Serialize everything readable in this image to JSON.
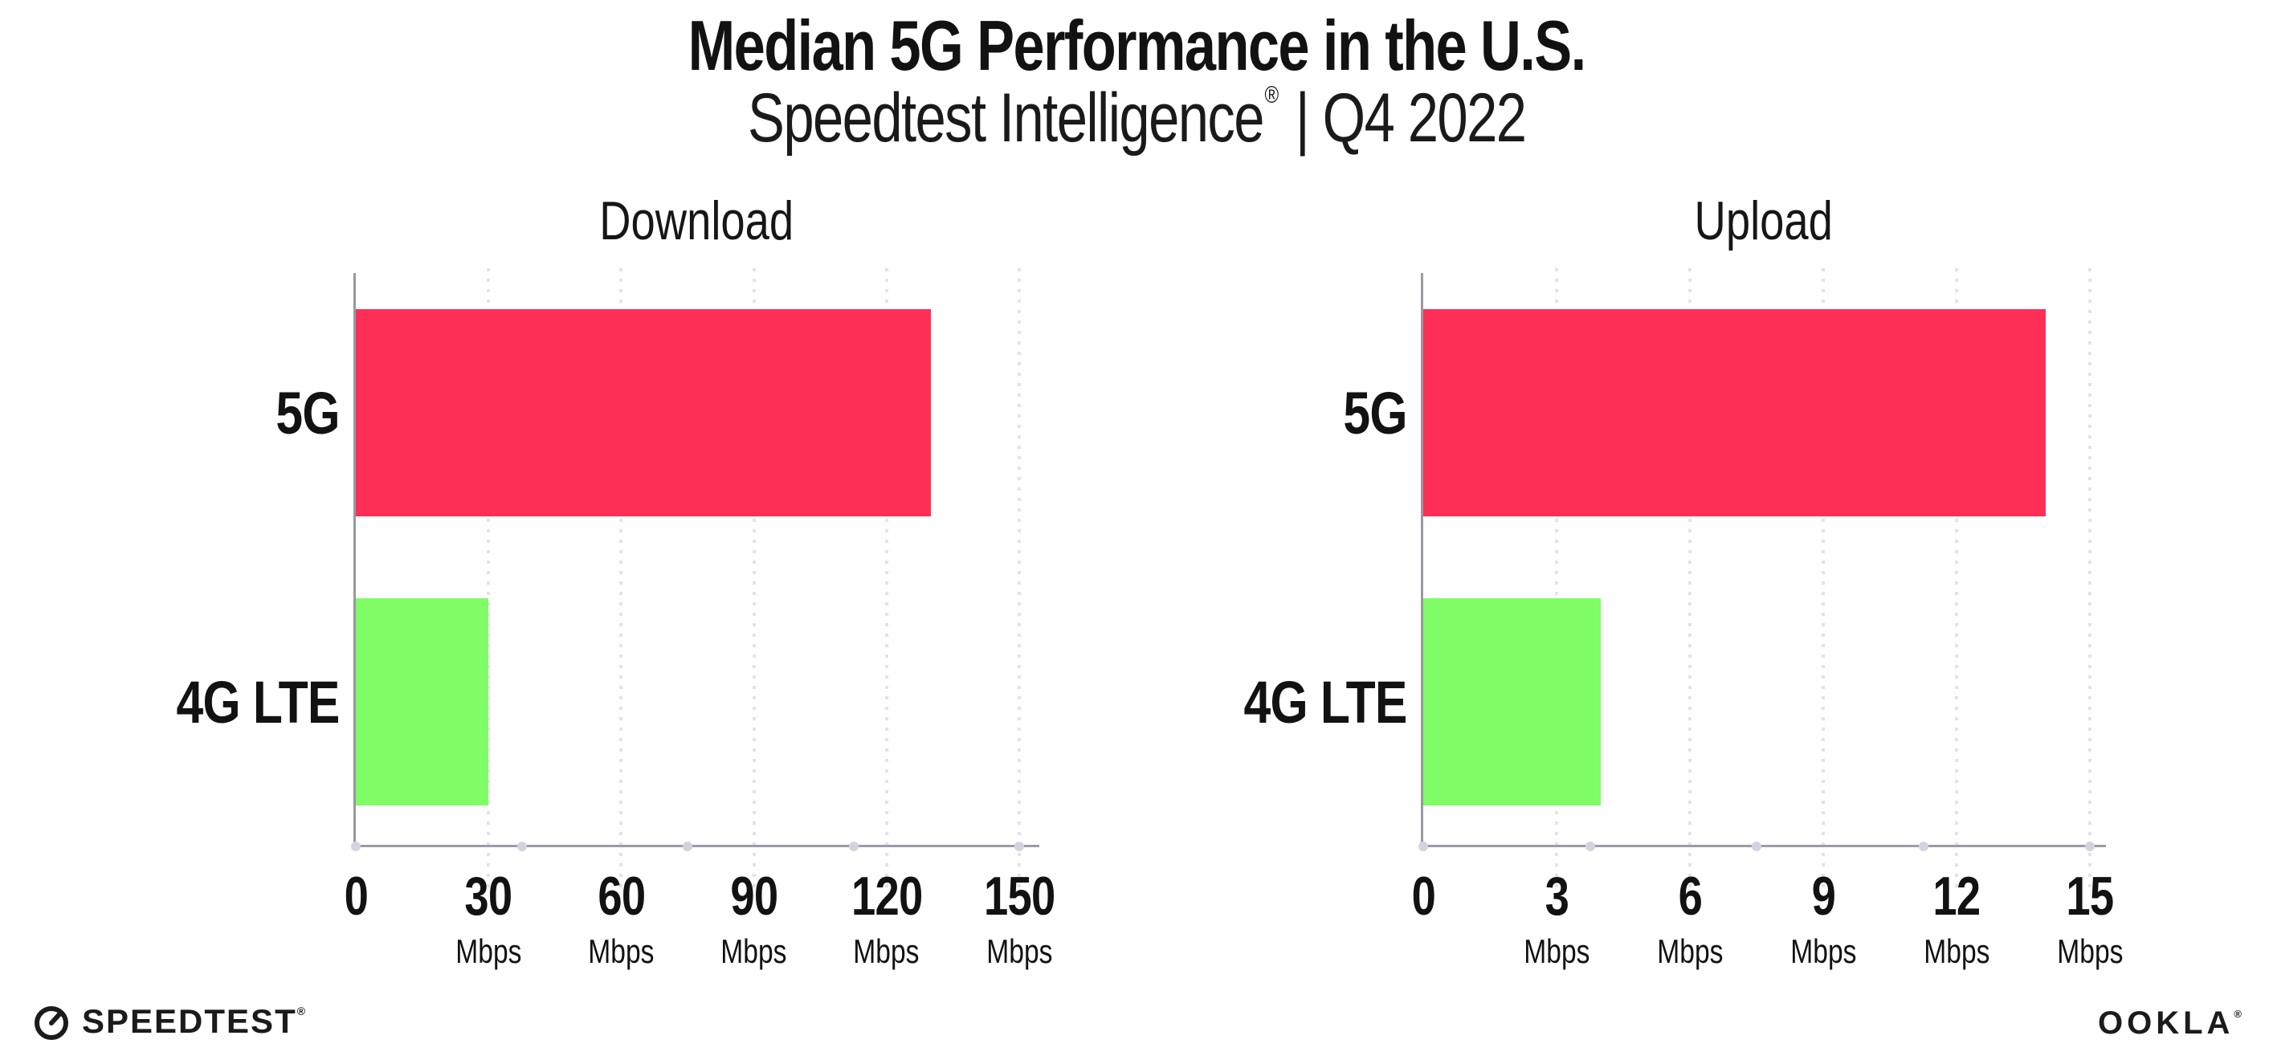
{
  "header": {
    "title": "Median 5G Performance in the U.S.",
    "subtitle_brand": "Speedtest Intelligence",
    "subtitle_reg": "®",
    "subtitle_period": "| Q4 2022"
  },
  "colors": {
    "bar_5g": "#ff2e57",
    "bar_4g_lte": "#7ffc66",
    "axis_line": "#9b9da4",
    "spine": "#97999f",
    "grid_dots": "#e2e3ec",
    "axis_marker_dots": "#d2d3de",
    "text": "#121212"
  },
  "chart_data": [
    {
      "type": "bar",
      "orientation": "horizontal",
      "title": "Download",
      "categories": [
        "5G",
        "4G LTE"
      ],
      "values": [
        130,
        30
      ],
      "unit": "Mbps",
      "ticks": [
        0,
        30,
        60,
        90,
        120,
        150
      ],
      "xlim": [
        0,
        150
      ],
      "bar_colors": [
        "#ff2e57",
        "#7ffc66"
      ],
      "grid": "dotted-vertical",
      "legend": "none"
    },
    {
      "type": "bar",
      "orientation": "horizontal",
      "title": "Upload",
      "categories": [
        "5G",
        "4G LTE"
      ],
      "values": [
        14,
        4
      ],
      "unit": "Mbps",
      "ticks": [
        0,
        3,
        6,
        9,
        12,
        15
      ],
      "xlim": [
        0,
        15
      ],
      "bar_colors": [
        "#ff2e57",
        "#7ffc66"
      ],
      "grid": "dotted-vertical",
      "legend": "none"
    }
  ],
  "footer": {
    "speedtest_label": "SPEEDTEST",
    "speedtest_reg": "®",
    "ookla_label": "OOKLA",
    "ookla_reg": "®"
  }
}
